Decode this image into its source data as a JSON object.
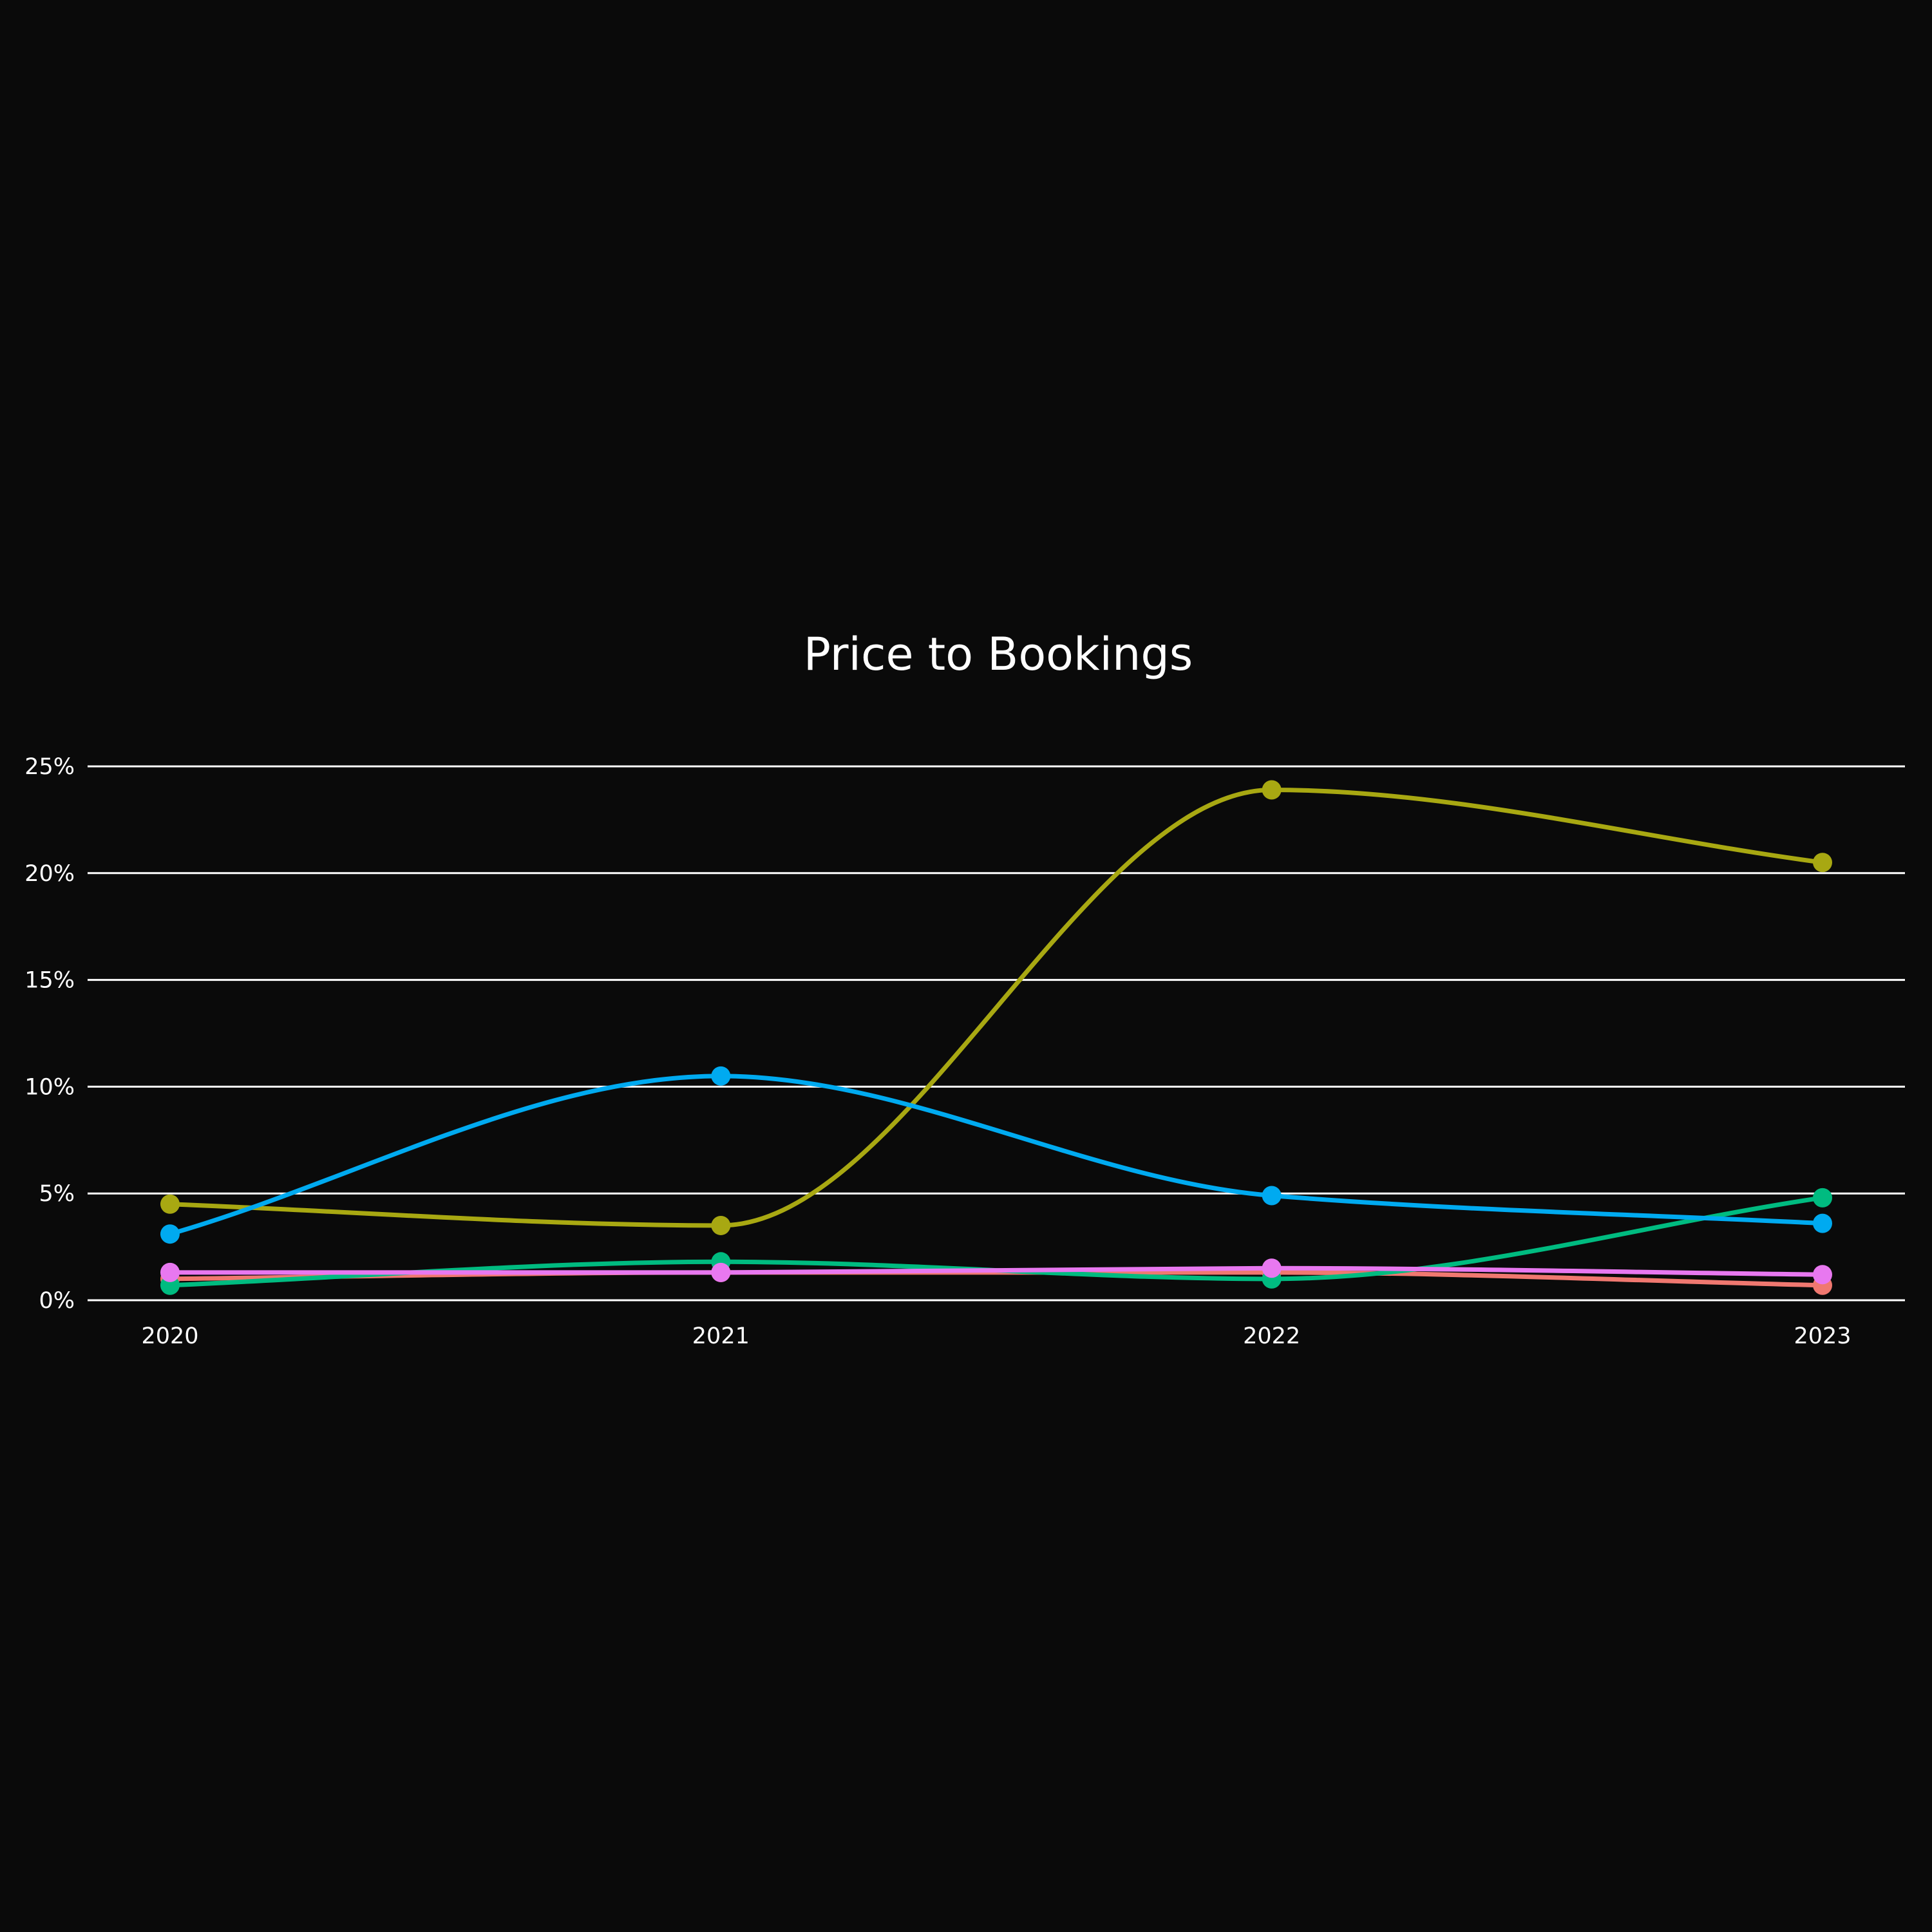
{
  "chart_data": {
    "type": "line",
    "title": "Price to Bookings",
    "xlabel": "",
    "ylabel": "",
    "x": [
      "2020",
      "2021",
      "2022",
      "2023"
    ],
    "ylim": [
      0,
      25
    ],
    "yticks": [
      0,
      5,
      10,
      15,
      20,
      25
    ],
    "ytick_labels": [
      "0%",
      "5%",
      "10%",
      "15%",
      "20%",
      "25%"
    ],
    "grid": true,
    "legend": "none",
    "background": "#0a0a0a",
    "series": [
      {
        "color": "#f07870",
        "values": [
          1.0,
          1.3,
          1.3,
          0.7
        ]
      },
      {
        "color": "#00bb80",
        "values": [
          0.7,
          1.8,
          1.0,
          4.8
        ]
      },
      {
        "color": "#e878f0",
        "values": [
          1.3,
          1.3,
          1.5,
          1.2
        ]
      },
      {
        "color": "#a8a812",
        "values": [
          4.5,
          3.5,
          23.9,
          20.5
        ]
      },
      {
        "color": "#00aaf0",
        "values": [
          3.1,
          10.5,
          4.9,
          3.6
        ]
      }
    ]
  }
}
